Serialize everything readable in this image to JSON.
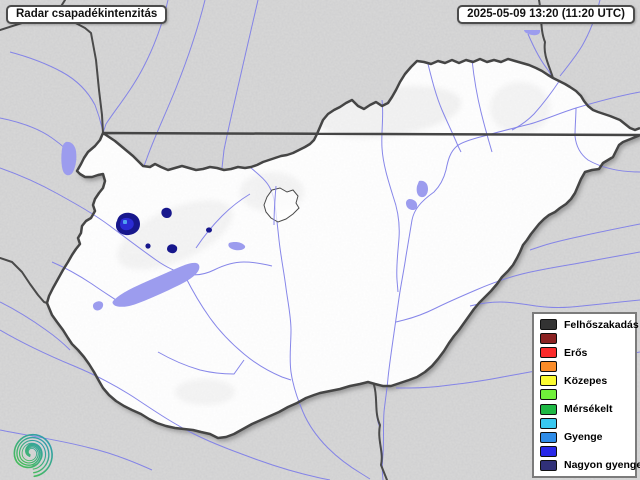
{
  "header": {
    "title": "Radar csapadékintenzitás",
    "timestamp": "2025-05-09 13:20 (11:20 UTC)"
  },
  "legend": {
    "items": [
      {
        "label": "Felhőszakadás",
        "color": "#333333"
      },
      {
        "label": "",
        "color": "#8b2222"
      },
      {
        "label": "Erős",
        "color": "#fb2b2b"
      },
      {
        "label": "",
        "color": "#fb8c28"
      },
      {
        "label": "Közepes",
        "color": "#fbfb30"
      },
      {
        "label": "",
        "color": "#70f03a"
      },
      {
        "label": "Mérsékelt",
        "color": "#1eb844"
      },
      {
        "label": "",
        "color": "#38c8f0"
      },
      {
        "label": "Gyenge",
        "color": "#2e8ce8"
      },
      {
        "label": "",
        "color": "#2828e8"
      },
      {
        "label": "Nagyon gyenge",
        "color": "#303078"
      }
    ]
  },
  "map": {
    "colors": {
      "outside_fill": "#d9d9d9",
      "country_fill": "#ffffff",
      "country_border": "#454545",
      "river": "#8080e8",
      "lake": "#9c9cee",
      "precip_outer": "#17178c",
      "precip_mid": "#2b2bd4",
      "precip_core": "#4fa0f0",
      "logo_teal": "#2e9ab4",
      "logo_green": "#46bb5e"
    }
  }
}
